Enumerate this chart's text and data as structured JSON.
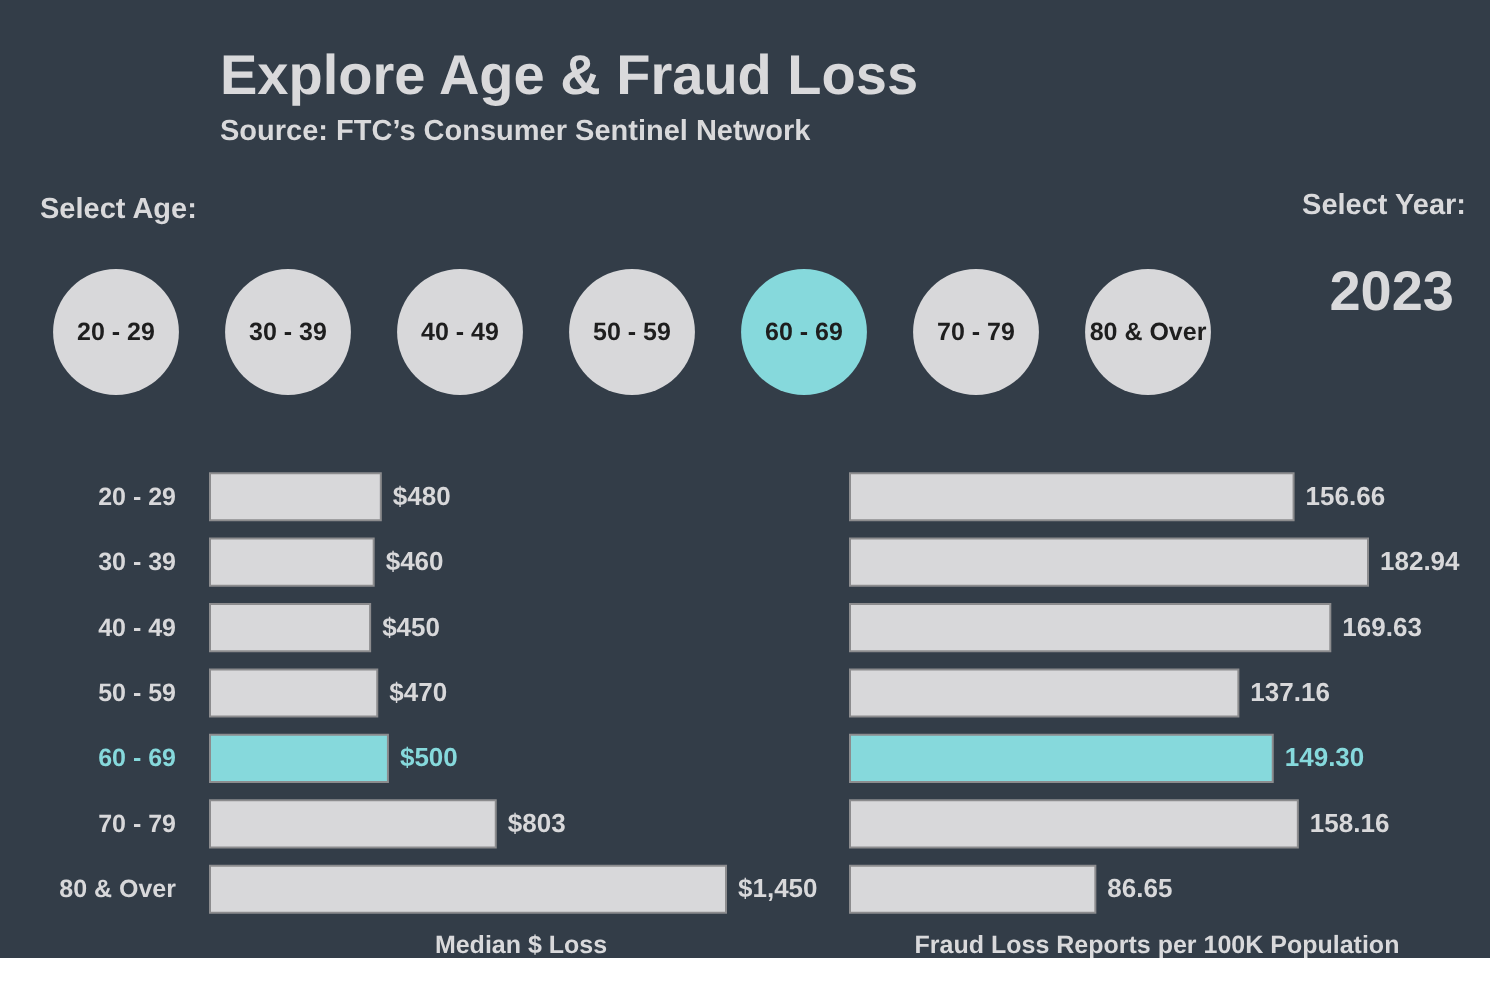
{
  "chart_data": [
    {
      "type": "other",
      "title": "Explore Age & Fraud Loss",
      "subtitle": "Source: FTC’s Consumer Sentinel Network",
      "categories": [
        "20 - 29",
        "30 - 39",
        "40 - 49",
        "50 - 59",
        "60 - 69",
        "70 - 79",
        "80 & Over"
      ],
      "colors": [
        "#d8d8da",
        "#d8d8da",
        "#d8d8da",
        "#d8d8da",
        "#86d9dc",
        "#d8d8da",
        "#d8d8da"
      ],
      "annotations": [
        "Select Age:",
        "Select Year:",
        "2023"
      ]
    },
    {
      "type": "bar",
      "orientation": "horizontal",
      "categories": [
        "20 - 29",
        "30 - 39",
        "40 - 49",
        "50 - 59",
        "60 - 69",
        "70 - 79",
        "80 & Over"
      ],
      "values": [
        480,
        460,
        450,
        470,
        500,
        803,
        1450
      ],
      "colors": [
        "#d8d8da",
        "#d8d8da",
        "#d8d8da",
        "#d8d8da",
        "#86d9dc",
        "#d8d8da",
        "#d8d8da"
      ],
      "value_labels": [
        "$480",
        "$460",
        "$450",
        "$470",
        "$500",
        "$803",
        "$1,450"
      ],
      "xlabel": "Median $ Loss",
      "tick_labels": "y"
    },
    {
      "type": "bar",
      "orientation": "horizontal",
      "categories": [
        null,
        null,
        null,
        null,
        null,
        null,
        null
      ],
      "values": [
        156.66,
        182.94,
        169.63,
        137.16,
        149.3,
        158.16,
        86.65
      ],
      "colors": [
        "#d8d8da",
        "#d8d8da",
        "#d8d8da",
        "#d8d8da",
        "#86d9dc",
        "#d8d8da",
        "#d8d8da"
      ],
      "value_labels": [
        "156.66",
        "182.94",
        "169.63",
        "137.16",
        "149.30",
        "158.16",
        "86.65"
      ],
      "xlabel": "Fraud Loss Reports per 100K Population",
      "tick_labels": false
    }
  ]
}
